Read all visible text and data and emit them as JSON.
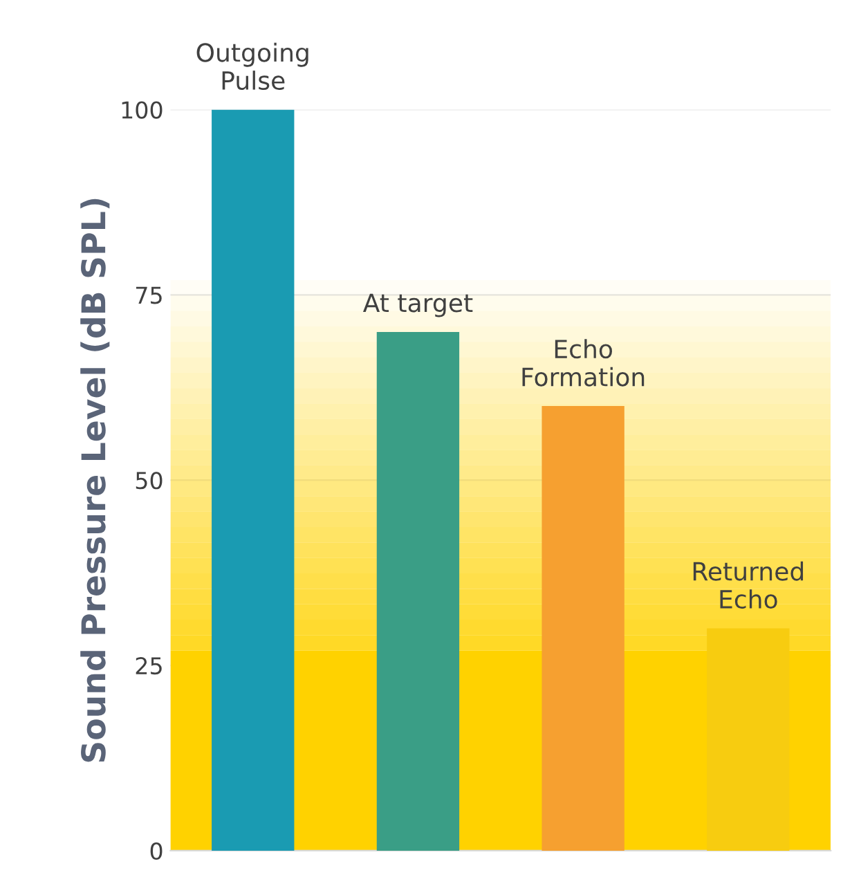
{
  "chart_data": {
    "type": "bar",
    "ylabel": "Sound Pressure Level (dB SPL)",
    "categories": [
      "Outgoing\nPulse",
      "At target",
      "Echo\nFormation",
      "Returned\nEcho"
    ],
    "values": [
      100,
      70,
      60,
      30
    ],
    "colors": [
      "#1a9bb2",
      "#3a9e86",
      "#f6a030",
      "#f7cc10"
    ],
    "ylim": [
      0,
      100
    ],
    "yticks": [
      0,
      25,
      50,
      75,
      100
    ],
    "grid": "y"
  }
}
